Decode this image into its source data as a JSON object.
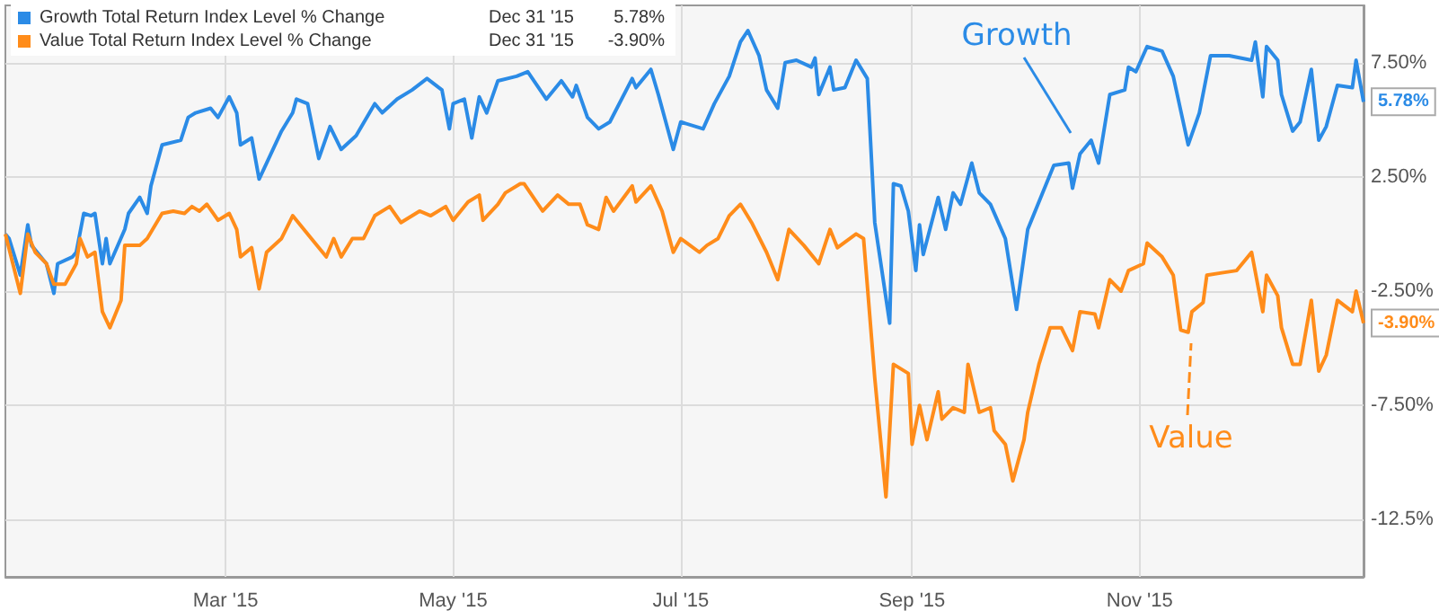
{
  "chart_data": {
    "type": "line",
    "xlim": [
      "2015-01-01",
      "2015-12-31"
    ],
    "xticks": [
      {
        "value": "2015-03-01",
        "label": "Mar '15"
      },
      {
        "value": "2015-05-01",
        "label": "May '15"
      },
      {
        "value": "2015-07-01",
        "label": "Jul '15"
      },
      {
        "value": "2015-09-01",
        "label": "Sep '15"
      },
      {
        "value": "2015-11-01",
        "label": "Nov '15"
      }
    ],
    "ylim": [
      -15,
      10
    ],
    "yticks": [
      {
        "value": -12.5,
        "label": "-12.5%"
      },
      {
        "value": -7.5,
        "label": "-7.50%"
      },
      {
        "value": -2.5,
        "label": "-2.50%"
      },
      {
        "value": 2.5,
        "label": "2.50%"
      },
      {
        "value": 7.5,
        "label": "7.50%"
      }
    ],
    "grid": true,
    "legend": "top left",
    "marker": "none",
    "line_style": "solid",
    "series": [
      {
        "name": "Growth Total Return Index Level % Change",
        "color": "#2b8be6",
        "x": [
          "2015-01-01",
          "2015-01-02",
          "2015-01-05",
          "2015-01-07",
          "2015-01-08",
          "2015-01-12",
          "2015-01-14",
          "2015-01-15",
          "2015-01-19",
          "2015-01-20",
          "2015-01-22",
          "2015-01-24",
          "2015-01-25",
          "2015-01-27",
          "2015-01-28",
          "2015-01-29",
          "2015-02-02",
          "2015-02-03",
          "2015-02-06",
          "2015-02-08",
          "2015-02-09",
          "2015-02-12",
          "2015-02-17",
          "2015-02-19",
          "2015-02-21",
          "2015-02-25",
          "2015-02-27",
          "2015-03-02",
          "2015-03-04",
          "2015-03-05",
          "2015-03-08",
          "2015-03-10",
          "2015-03-12",
          "2015-03-16",
          "2015-03-19",
          "2015-03-20",
          "2015-03-23",
          "2015-03-26",
          "2015-03-29",
          "2015-04-01",
          "2015-04-05",
          "2015-04-10",
          "2015-04-12",
          "2015-04-16",
          "2015-04-20",
          "2015-04-24",
          "2015-04-28",
          "2015-04-30",
          "2015-05-01",
          "2015-05-04",
          "2015-05-06",
          "2015-05-08",
          "2015-05-10",
          "2015-05-13",
          "2015-05-18",
          "2015-05-21",
          "2015-05-26",
          "2015-05-30",
          "2015-06-02",
          "2015-06-03",
          "2015-06-06",
          "2015-06-09",
          "2015-06-12",
          "2015-06-18",
          "2015-06-19",
          "2015-06-23",
          "2015-06-25",
          "2015-06-29",
          "2015-07-01",
          "2015-07-07",
          "2015-07-10",
          "2015-07-14",
          "2015-07-17",
          "2015-07-19",
          "2015-07-22",
          "2015-07-24",
          "2015-07-27",
          "2015-07-29",
          "2015-08-01",
          "2015-08-05",
          "2015-08-06",
          "2015-08-07",
          "2015-08-10",
          "2015-08-11",
          "2015-08-14",
          "2015-08-17",
          "2015-08-20",
          "2015-08-22",
          "2015-08-26",
          "2015-08-27",
          "2015-08-29",
          "2015-08-31",
          "2015-09-02",
          "2015-09-03",
          "2015-09-04",
          "2015-09-08",
          "2015-09-10",
          "2015-09-12",
          "2015-09-14",
          "2015-09-17",
          "2015-09-19",
          "2015-09-22",
          "2015-09-26",
          "2015-09-29",
          "2015-10-02",
          "2015-10-06",
          "2015-10-09",
          "2015-10-13",
          "2015-10-14",
          "2015-10-16",
          "2015-10-19",
          "2015-10-21",
          "2015-10-24",
          "2015-10-28",
          "2015-10-29",
          "2015-10-31",
          "2015-11-03",
          "2015-11-07",
          "2015-11-10",
          "2015-11-14",
          "2015-11-17",
          "2015-11-20",
          "2015-11-25",
          "2015-12-01",
          "2015-12-02",
          "2015-12-04",
          "2015-12-05",
          "2015-12-08",
          "2015-12-09",
          "2015-12-12",
          "2015-12-14",
          "2015-12-17",
          "2015-12-19",
          "2015-12-21",
          "2015-12-24",
          "2015-12-28",
          "2015-12-29",
          "2015-12-31"
        ],
        "values": [
          0.0,
          -0.2,
          -1.8,
          0.4,
          -0.5,
          -1.3,
          -2.6,
          -1.3,
          -1.0,
          -0.8,
          0.9,
          0.8,
          0.9,
          -1.3,
          -0.2,
          -1.3,
          0.2,
          0.9,
          1.6,
          0.9,
          2.1,
          3.9,
          4.1,
          5.1,
          5.3,
          5.5,
          5.1,
          6.0,
          5.3,
          3.9,
          4.2,
          2.4,
          3.1,
          4.5,
          5.3,
          5.9,
          5.7,
          3.3,
          4.7,
          3.7,
          4.3,
          5.7,
          5.3,
          5.9,
          6.3,
          6.8,
          6.3,
          4.6,
          5.7,
          5.9,
          4.2,
          6.0,
          5.3,
          6.7,
          6.9,
          7.1,
          5.9,
          6.7,
          6.0,
          6.5,
          5.1,
          4.6,
          4.9,
          6.8,
          6.4,
          7.2,
          6.1,
          3.7,
          4.9,
          4.6,
          5.7,
          6.9,
          8.4,
          8.9,
          7.8,
          6.3,
          5.5,
          7.5,
          7.6,
          7.3,
          7.7,
          6.1,
          7.3,
          6.3,
          6.4,
          7.6,
          6.8,
          0.5,
          -3.9,
          2.2,
          2.1,
          1.0,
          -1.6,
          0.4,
          -0.9,
          1.6,
          0.2,
          1.8,
          1.3,
          3.1,
          1.8,
          1.3,
          -0.2,
          -3.3,
          0.2,
          1.8,
          3.0,
          3.1,
          2.0,
          3.5,
          4.1,
          3.1,
          6.1,
          6.3,
          7.3,
          7.1,
          8.2,
          8.0,
          6.9,
          3.9,
          5.3,
          7.8,
          7.8,
          7.6,
          8.4,
          6.0,
          8.2,
          7.6,
          6.1,
          4.5,
          4.9,
          7.2,
          4.1,
          4.7,
          6.5,
          6.4,
          7.6,
          5.78
        ]
      },
      {
        "name": "Value Total Return Index Level % Change",
        "color": "#ff8c1a",
        "x": [
          "2015-01-01",
          "2015-01-05",
          "2015-01-07",
          "2015-01-09",
          "2015-01-12",
          "2015-01-14",
          "2015-01-17",
          "2015-01-20",
          "2015-01-21",
          "2015-01-23",
          "2015-01-25",
          "2015-01-27",
          "2015-01-29",
          "2015-02-01",
          "2015-02-02",
          "2015-02-06",
          "2015-02-08",
          "2015-02-12",
          "2015-02-15",
          "2015-02-18",
          "2015-02-20",
          "2015-02-22",
          "2015-02-24",
          "2015-02-27",
          "2015-03-02",
          "2015-03-04",
          "2015-03-05",
          "2015-03-08",
          "2015-03-10",
          "2015-03-12",
          "2015-03-16",
          "2015-03-19",
          "2015-03-24",
          "2015-03-28",
          "2015-03-30",
          "2015-04-01",
          "2015-04-04",
          "2015-04-07",
          "2015-04-10",
          "2015-04-14",
          "2015-04-17",
          "2015-04-22",
          "2015-04-25",
          "2015-04-29",
          "2015-05-01",
          "2015-05-05",
          "2015-05-08",
          "2015-05-09",
          "2015-05-13",
          "2015-05-15",
          "2015-05-19",
          "2015-05-20",
          "2015-05-25",
          "2015-05-29",
          "2015-06-01",
          "2015-06-04",
          "2015-06-06",
          "2015-06-09",
          "2015-06-11",
          "2015-06-13",
          "2015-06-18",
          "2015-06-19",
          "2015-06-23",
          "2015-06-26",
          "2015-06-29",
          "2015-07-01",
          "2015-07-06",
          "2015-07-08",
          "2015-07-11",
          "2015-07-14",
          "2015-07-17",
          "2015-07-20",
          "2015-07-24",
          "2015-07-27",
          "2015-07-30",
          "2015-08-03",
          "2015-08-07",
          "2015-08-10",
          "2015-08-12",
          "2015-08-17",
          "2015-08-19",
          "2015-08-22",
          "2015-08-25",
          "2015-08-27",
          "2015-08-31",
          "2015-09-01",
          "2015-09-03",
          "2015-09-05",
          "2015-09-08",
          "2015-09-09",
          "2015-09-12",
          "2015-09-15",
          "2015-09-16",
          "2015-09-19",
          "2015-09-22",
          "2015-09-23",
          "2015-09-26",
          "2015-09-28",
          "2015-10-01",
          "2015-10-02",
          "2015-10-05",
          "2015-10-08",
          "2015-10-11",
          "2015-10-14",
          "2015-10-16",
          "2015-10-20",
          "2015-10-21",
          "2015-10-24",
          "2015-10-27",
          "2015-10-29",
          "2015-11-02",
          "2015-11-03",
          "2015-11-07",
          "2015-11-10",
          "2015-11-12",
          "2015-11-14",
          "2015-11-15",
          "2015-11-18",
          "2015-11-19",
          "2015-11-23",
          "2015-11-27",
          "2015-12-01",
          "2015-12-04",
          "2015-12-05",
          "2015-12-08",
          "2015-12-09",
          "2015-12-12",
          "2015-12-14",
          "2015-12-17",
          "2015-12-19",
          "2015-12-21",
          "2015-12-24",
          "2015-12-28",
          "2015-12-29",
          "2015-12-31"
        ],
        "values": [
          0.0,
          -2.6,
          0.0,
          -0.8,
          -1.3,
          -2.2,
          -2.2,
          -1.3,
          -0.2,
          -1.0,
          -0.8,
          -3.4,
          -4.1,
          -2.9,
          -0.5,
          -0.5,
          -0.2,
          0.9,
          1.0,
          0.9,
          1.2,
          1.0,
          1.3,
          0.6,
          0.9,
          0.2,
          -1.0,
          -0.6,
          -2.4,
          -0.8,
          -0.2,
          0.8,
          -0.2,
          -1.0,
          -0.2,
          -1.0,
          -0.2,
          -0.2,
          0.8,
          1.2,
          0.5,
          1.0,
          0.8,
          1.2,
          0.6,
          1.4,
          1.7,
          0.6,
          1.3,
          1.8,
          2.2,
          2.2,
          1.0,
          1.7,
          1.3,
          1.3,
          0.4,
          0.2,
          1.6,
          1.0,
          2.1,
          1.4,
          2.1,
          1.0,
          -0.8,
          -0.2,
          -0.8,
          -0.5,
          -0.2,
          0.8,
          1.3,
          0.5,
          -0.8,
          -2.0,
          0.2,
          -0.5,
          -1.3,
          0.2,
          -0.6,
          0.0,
          -0.2,
          -6.3,
          -11.5,
          -5.7,
          -6.1,
          -9.2,
          -7.5,
          -9.0,
          -6.9,
          -8.1,
          -7.6,
          -7.8,
          -5.7,
          -7.8,
          -7.6,
          -8.6,
          -9.2,
          -10.8,
          -9.0,
          -7.8,
          -5.7,
          -4.1,
          -4.1,
          -5.1,
          -3.4,
          -3.5,
          -4.1,
          -2.0,
          -2.5,
          -1.6,
          -1.3,
          -0.4,
          -1.0,
          -1.8,
          -4.2,
          -4.3,
          -3.4,
          -3.0,
          -1.8,
          -1.7,
          -1.6,
          -0.8,
          -3.4,
          -1.8,
          -2.7,
          -4.1,
          -5.7,
          -5.7,
          -2.9,
          -6.0,
          -5.3,
          -2.9,
          -3.4,
          -2.5,
          -3.9
        ]
      }
    ],
    "annotations": [
      {
        "text": "5.78%",
        "x": "2015-12-31",
        "y": 5.78
      },
      {
        "text": "-3.90%",
        "x": "2015-12-31",
        "y": -3.9
      },
      "Growth",
      "Value",
      "Dec 31 '15"
    ]
  }
}
